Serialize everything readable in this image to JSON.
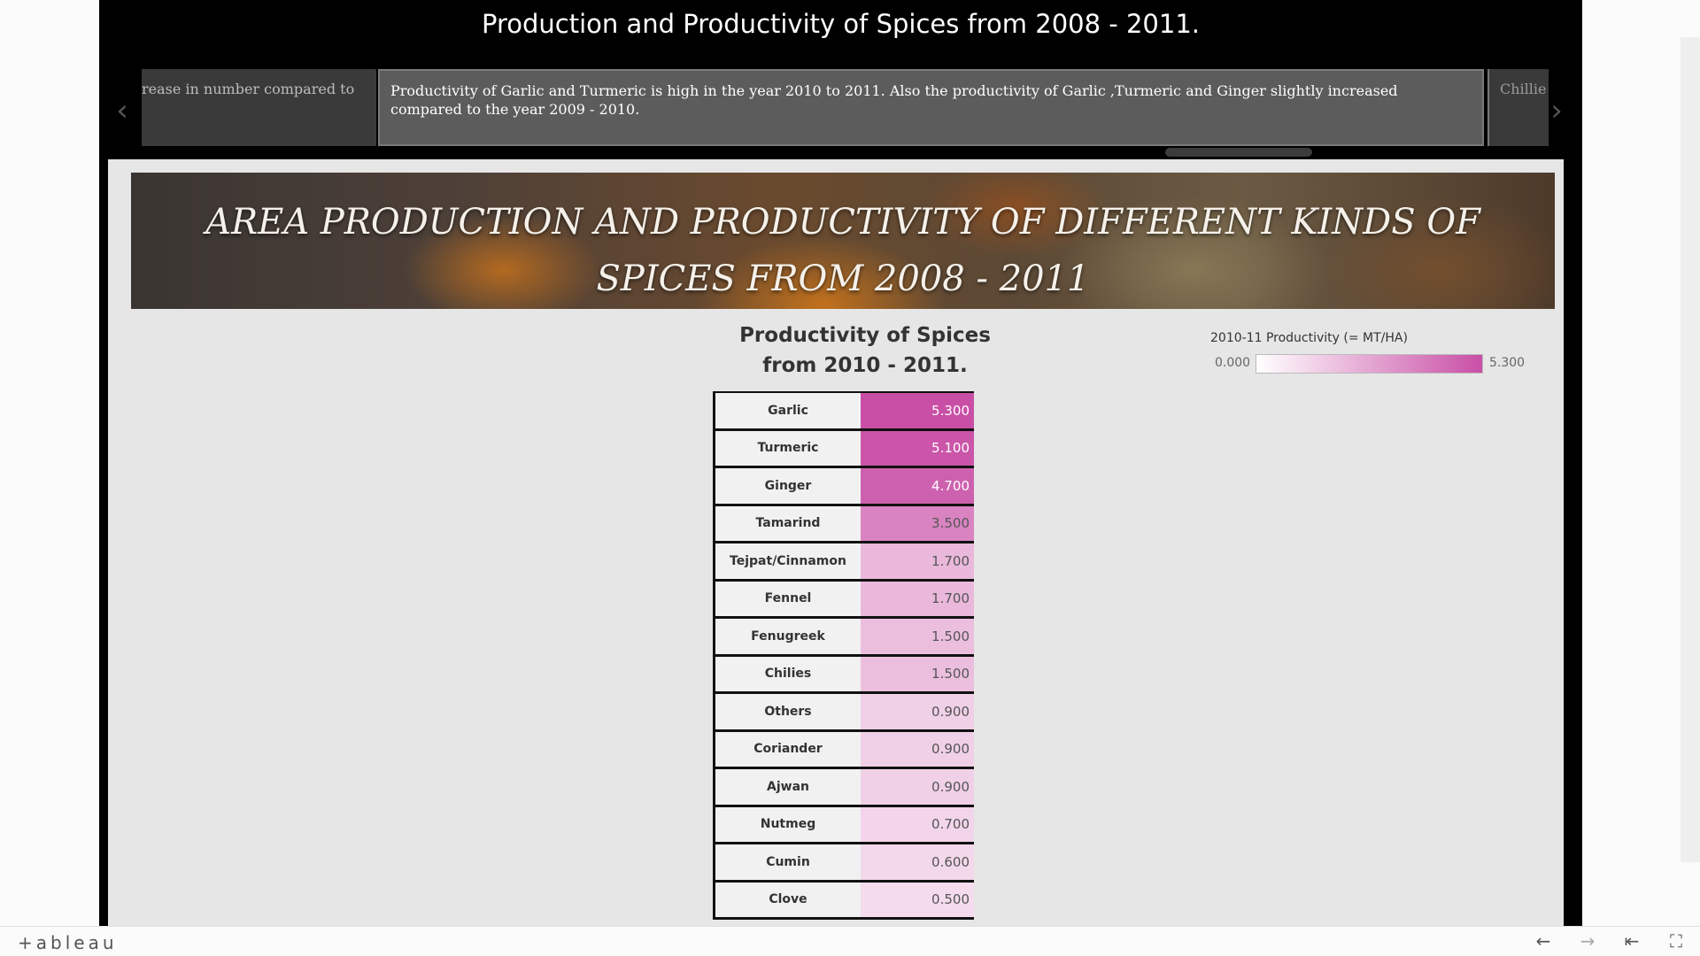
{
  "story": {
    "title": "Production and Productivity of Spices from 2008 - 2011.",
    "nav_prev_icon": "chevron-left-icon",
    "nav_next_icon": "chevron-right-icon",
    "captions": [
      {
        "text": "rease in number compared to"
      },
      {
        "text": "Productivity of Garlic and Turmeric is high  in the year 2010 to 2011. Also the productivity of Garlic ,Turmeric and Ginger  slightly increased compared to the year 2009 - 2010."
      },
      {
        "text": "Chillie"
      }
    ]
  },
  "dashboard": {
    "banner_title": "AREA PRODUCTION AND PRODUCTIVITY OF DIFFERENT KINDS OF SPICES FROM 2008 - 2011",
    "chart_title": "Productivity of Spices from 2010 - 2011.",
    "legend": {
      "title": "2010-11 Productivity (= MT/HA)",
      "min_label": "0.000",
      "max_label": "5.300",
      "min_color": "#ffffff",
      "max_color": "#c94fa6"
    }
  },
  "chart_data": {
    "type": "table",
    "title": "Productivity of Spices from 2010 - 2011.",
    "color_scale_title": "2010-11 Productivity (= MT/HA)",
    "color_range": [
      0.0,
      5.3
    ],
    "categories": [
      "Garlic",
      "Turmeric",
      "Ginger",
      "Tamarind",
      "Tejpat/Cinnamon",
      "Fennel",
      "Fenugreek",
      "Chilies",
      "Others",
      "Coriander",
      "Ajwan",
      "Nutmeg",
      "Cumin",
      "Clove"
    ],
    "values": [
      5.3,
      5.1,
      4.7,
      3.5,
      1.7,
      1.7,
      1.5,
      1.5,
      0.9,
      0.9,
      0.9,
      0.7,
      0.6,
      0.5
    ],
    "value_labels": [
      "5.300",
      "5.100",
      "4.700",
      "3.500",
      "1.700",
      "1.700",
      "1.500",
      "1.500",
      "0.900",
      "0.900",
      "0.900",
      "0.700",
      "0.600",
      "0.500"
    ]
  },
  "footer": {
    "logo": "+ableau",
    "buttons": [
      {
        "name": "undo-icon",
        "glyph": "←"
      },
      {
        "name": "redo-icon",
        "glyph": "→"
      },
      {
        "name": "revert-icon",
        "glyph": "⇤"
      },
      {
        "name": "fullscreen-icon",
        "glyph": "⛶"
      }
    ]
  }
}
